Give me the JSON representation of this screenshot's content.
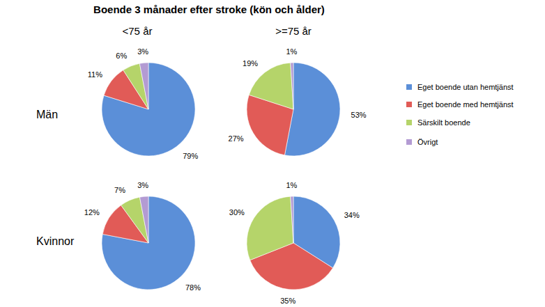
{
  "chart_data": {
    "type": "pie",
    "title": "Boende 3 månader efter stroke (kön och ålder)",
    "columns": [
      "<75 år",
      ">=75 år"
    ],
    "rows": [
      "Män",
      "Kvinnor"
    ],
    "categories": [
      "Eget boende utan hemtjänst",
      "Eget boende med hemtjänst",
      "Särskilt boende",
      "Övrigt"
    ],
    "colors": [
      "#5b8fd8",
      "#e15b57",
      "#b5d46a",
      "#b39bd3"
    ],
    "values": [
      [
        [
          79,
          11,
          6,
          3
        ],
        [
          53,
          27,
          19,
          1
        ]
      ],
      [
        [
          78,
          12,
          7,
          3
        ],
        [
          34,
          35,
          30,
          1
        ]
      ]
    ],
    "value_labels": [
      [
        [
          "79%",
          "11%",
          "6%",
          "3%"
        ],
        [
          "53%",
          "27%",
          "19%",
          "1%"
        ]
      ],
      [
        [
          "78%",
          "12%",
          "7%",
          "3%"
        ],
        [
          "34%",
          "35%",
          "30%",
          "1%"
        ]
      ]
    ],
    "data_labels": true,
    "legend": "right"
  }
}
